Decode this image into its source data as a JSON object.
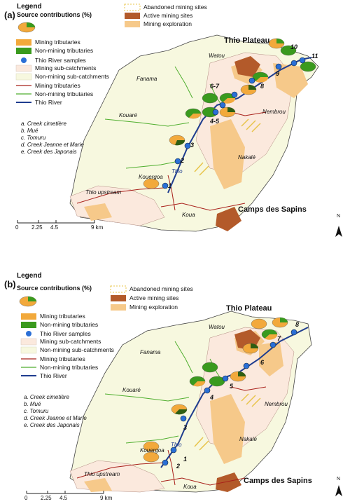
{
  "panels": [
    {
      "label": "(a)",
      "legend": {
        "title": "Legend",
        "source_title": "Source contributions (%)",
        "items": {
          "mining_trib_fill": "Mining tributaries",
          "nonmining_trib_fill": "Non-mining tributaries",
          "samples": "Thio River samples",
          "mining_sub": "Mining sub-catchments",
          "nonmining_sub": "Non-mining sub-catchments",
          "mining_trib_line": "Mining tributaries",
          "nonmining_trib_line": "Non-mining tributaries",
          "river": "Thio River",
          "abandoned": "Abandoned mining sites",
          "active": "Active mining sites",
          "exploration": "Mining exploration"
        },
        "creeks": [
          "a. Creek cimetière",
          "b. Mué",
          "c. Tomuru",
          "d. Creek Jeanne et Marie",
          "e. Creek des Japonais"
        ]
      },
      "places": {
        "thio_plateau": "Thio Plateau",
        "camps": "Camps des Sapins",
        "fanama": "Fanama",
        "watou": "Watou",
        "kouare": "Kouaré",
        "nembrou": "Nembrou",
        "nakale": "Nakalé",
        "kouergoa": "Kouergoa",
        "thio_upstream": "Thio upstream",
        "koua": "Koua",
        "thio": "Thio"
      },
      "samples": [
        "1",
        "2",
        "3",
        "4-5",
        "6-7",
        "8",
        "9",
        "10",
        "11"
      ],
      "scale": {
        "ticks": [
          "0",
          "2.25",
          "4.5",
          "9 km"
        ]
      },
      "north": "N"
    },
    {
      "label": "(b)",
      "legend": {
        "title": "Legend",
        "source_title": "Source contributions (%)",
        "items": {
          "mining_trib_fill": "Mining tributaries",
          "nonmining_trib_fill": "Non-mining tributaries",
          "samples": "Thio River samples",
          "mining_sub": "Mining sub-catchments",
          "nonmining_sub": "Non-mining sub-catchments",
          "mining_trib_line": "Mining tributaries",
          "nonmining_trib_line": "Non-mining tributaries",
          "river": "Thio River",
          "abandoned": "Abandoned mining sites",
          "active": "Active mining sites",
          "exploration": "Mining exploration"
        },
        "creeks": [
          "a. Creek cimetière",
          "b. Mué",
          "c. Tomuru",
          "d. Creek Jeanne et Marie",
          "e. Creek des Japonais"
        ]
      },
      "places": {
        "thio_plateau": "Thio Plateau",
        "camps": "Camps des Sapins",
        "fanama": "Fanama",
        "watou": "Watou",
        "kouare": "Kouaré",
        "nembrou": "Nembrou",
        "nakale": "Nakalé",
        "kouergoa": "Kouergoa",
        "thio_upstream": "Thio upstream",
        "koua": "Koua",
        "thio": "Thio"
      },
      "samples": [
        "1",
        "2",
        "3",
        "4",
        "5",
        "6",
        "7",
        "8"
      ],
      "scale": {
        "ticks": [
          "0",
          "2.25",
          "4.5",
          "9 km"
        ]
      },
      "north": "N"
    }
  ],
  "colors": {
    "mining": "#f2a93b",
    "nonmining": "#3a9a1e",
    "pie_dark": "#2e5e12",
    "river": "#1f3d8f",
    "sample": "#2b6fd6",
    "mining_sub": "#fbe9dd",
    "nonmining_sub": "#f7f8df",
    "mining_line": "#a8201a",
    "nonmining_line": "#4fae2e",
    "active": "#b35a2a",
    "abandoned": "#e8c44a",
    "exploration": "#f6c98a"
  }
}
